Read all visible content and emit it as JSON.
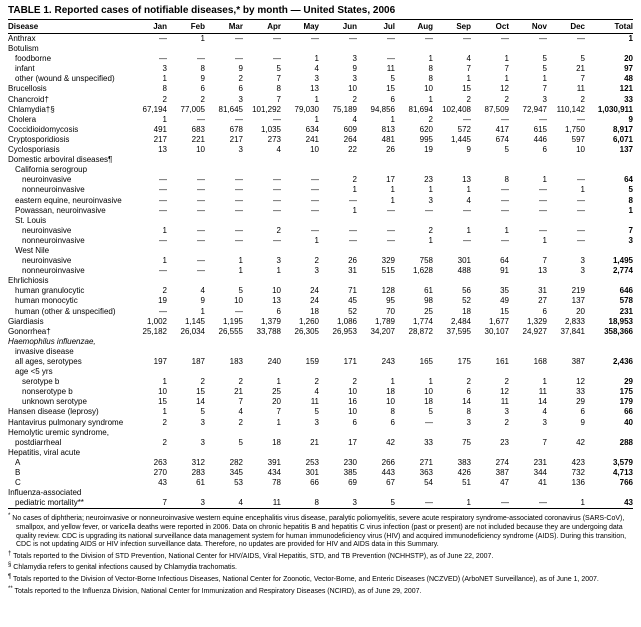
{
  "title": "TABLE 1.  Reported cases of notifiable diseases,* by month — United States, 2006",
  "table": {
    "columns": [
      "Disease",
      "Jan",
      "Feb",
      "Mar",
      "Apr",
      "May",
      "Jun",
      "Jul",
      "Aug",
      "Sep",
      "Oct",
      "Nov",
      "Dec",
      "Total"
    ],
    "empty_marker": "—",
    "rows": [
      {
        "label": "Anthrax",
        "indent": 0,
        "values": [
          "—",
          "1",
          "—",
          "—",
          "—",
          "—",
          "—",
          "—",
          "—",
          "—",
          "—",
          "—",
          "1"
        ]
      },
      {
        "label": "Botulism",
        "indent": 0,
        "values": []
      },
      {
        "label": "foodborne",
        "indent": 1,
        "values": [
          "—",
          "—",
          "—",
          "—",
          "1",
          "3",
          "—",
          "1",
          "4",
          "1",
          "5",
          "5",
          "20"
        ]
      },
      {
        "label": "infant",
        "indent": 1,
        "values": [
          "3",
          "8",
          "9",
          "5",
          "4",
          "9",
          "11",
          "8",
          "7",
          "7",
          "5",
          "21",
          "97"
        ]
      },
      {
        "label": "other (wound & unspecified)",
        "indent": 1,
        "values": [
          "1",
          "9",
          "2",
          "7",
          "3",
          "3",
          "5",
          "8",
          "1",
          "1",
          "1",
          "7",
          "48"
        ]
      },
      {
        "label": "Brucellosis",
        "indent": 0,
        "values": [
          "8",
          "6",
          "6",
          "8",
          "13",
          "10",
          "15",
          "10",
          "15",
          "12",
          "7",
          "11",
          "121"
        ]
      },
      {
        "label": "Chancroid†",
        "indent": 0,
        "values": [
          "2",
          "2",
          "3",
          "7",
          "1",
          "2",
          "6",
          "1",
          "2",
          "2",
          "3",
          "2",
          "33"
        ]
      },
      {
        "label": "Chlamydia†§",
        "indent": 0,
        "values": [
          "67,194",
          "77,005",
          "81,645",
          "101,292",
          "79,030",
          "75,189",
          "94,856",
          "81,694",
          "102,408",
          "87,509",
          "72,947",
          "110,142",
          "1,030,911"
        ]
      },
      {
        "label": "Cholera",
        "indent": 0,
        "values": [
          "1",
          "—",
          "—",
          "—",
          "1",
          "4",
          "1",
          "2",
          "—",
          "—",
          "—",
          "—",
          "9"
        ]
      },
      {
        "label": "Coccidioidomycosis",
        "indent": 0,
        "values": [
          "491",
          "683",
          "678",
          "1,035",
          "634",
          "609",
          "813",
          "620",
          "572",
          "417",
          "615",
          "1,750",
          "8,917"
        ]
      },
      {
        "label": "Cryptosporidiosis",
        "indent": 0,
        "values": [
          "217",
          "221",
          "217",
          "273",
          "241",
          "264",
          "481",
          "995",
          "1,445",
          "674",
          "446",
          "597",
          "6,071"
        ]
      },
      {
        "label": "Cyclosporiasis",
        "indent": 0,
        "values": [
          "13",
          "10",
          "3",
          "4",
          "10",
          "22",
          "26",
          "19",
          "9",
          "5",
          "6",
          "10",
          "137"
        ]
      },
      {
        "label": "Domestic arboviral diseases¶",
        "indent": 0,
        "values": []
      },
      {
        "label": "California serogroup",
        "indent": 1,
        "values": []
      },
      {
        "label": "neuroinvasive",
        "indent": 2,
        "values": [
          "—",
          "—",
          "—",
          "—",
          "—",
          "2",
          "17",
          "23",
          "13",
          "8",
          "1",
          "—",
          "64"
        ]
      },
      {
        "label": "nonneuroinvasive",
        "indent": 2,
        "values": [
          "—",
          "—",
          "—",
          "—",
          "—",
          "1",
          "1",
          "1",
          "1",
          "—",
          "—",
          "1",
          "5"
        ]
      },
      {
        "label": "eastern equine, neuroinvasive",
        "indent": 1,
        "values": [
          "—",
          "—",
          "—",
          "—",
          "—",
          "—",
          "1",
          "3",
          "4",
          "—",
          "—",
          "—",
          "8"
        ]
      },
      {
        "label": "Powassan, neuroinvasive",
        "indent": 1,
        "values": [
          "—",
          "—",
          "—",
          "—",
          "—",
          "1",
          "—",
          "—",
          "—",
          "—",
          "—",
          "—",
          "1"
        ]
      },
      {
        "label": "St. Louis",
        "indent": 1,
        "values": []
      },
      {
        "label": "neuroinvasive",
        "indent": 2,
        "values": [
          "1",
          "—",
          "—",
          "2",
          "—",
          "—",
          "—",
          "2",
          "1",
          "1",
          "—",
          "—",
          "7"
        ]
      },
      {
        "label": "nonneuroinvasive",
        "indent": 2,
        "values": [
          "—",
          "—",
          "—",
          "—",
          "1",
          "—",
          "—",
          "1",
          "—",
          "—",
          "1",
          "—",
          "3"
        ]
      },
      {
        "label": "West Nile",
        "indent": 1,
        "values": []
      },
      {
        "label": "neuroinvasive",
        "indent": 2,
        "values": [
          "1",
          "—",
          "1",
          "3",
          "2",
          "26",
          "329",
          "758",
          "301",
          "64",
          "7",
          "3",
          "1,495"
        ]
      },
      {
        "label": "nonneuroinvasive",
        "indent": 2,
        "values": [
          "—",
          "—",
          "1",
          "1",
          "3",
          "31",
          "515",
          "1,628",
          "488",
          "91",
          "13",
          "3",
          "2,774"
        ]
      },
      {
        "label": "Ehrlichiosis",
        "indent": 0,
        "values": []
      },
      {
        "label": "human granulocytic",
        "indent": 1,
        "values": [
          "2",
          "4",
          "5",
          "10",
          "24",
          "71",
          "128",
          "61",
          "56",
          "35",
          "31",
          "219",
          "646"
        ]
      },
      {
        "label": "human monocytic",
        "indent": 1,
        "values": [
          "19",
          "9",
          "10",
          "13",
          "24",
          "45",
          "95",
          "98",
          "52",
          "49",
          "27",
          "137",
          "578"
        ]
      },
      {
        "label": "human (other & unspecified)",
        "indent": 1,
        "values": [
          "—",
          "1",
          "—",
          "6",
          "18",
          "52",
          "70",
          "25",
          "18",
          "15",
          "6",
          "20",
          "231"
        ]
      },
      {
        "label": "Giardiasis",
        "indent": 0,
        "values": [
          "1,002",
          "1,145",
          "1,195",
          "1,379",
          "1,260",
          "1,086",
          "1,789",
          "1,774",
          "2,484",
          "1,677",
          "1,329",
          "2,833",
          "18,953"
        ]
      },
      {
        "label": "Gonorrhea†",
        "indent": 0,
        "values": [
          "25,182",
          "26,034",
          "26,555",
          "33,788",
          "26,305",
          "26,953",
          "34,207",
          "28,872",
          "37,595",
          "30,107",
          "24,927",
          "37,841",
          "358,366"
        ]
      },
      {
        "label": "Haemophilus influenzae,",
        "indent": 0,
        "italic": true,
        "values": []
      },
      {
        "label": "invasive disease",
        "indent": 1,
        "values": []
      },
      {
        "label": "all ages, serotypes",
        "indent": 1,
        "values": [
          "197",
          "187",
          "183",
          "240",
          "159",
          "171",
          "243",
          "165",
          "175",
          "161",
          "168",
          "387",
          "2,436"
        ]
      },
      {
        "label": "age <5 yrs",
        "indent": 1,
        "values": []
      },
      {
        "label": "serotype b",
        "indent": 2,
        "values": [
          "1",
          "2",
          "2",
          "1",
          "2",
          "2",
          "1",
          "1",
          "2",
          "2",
          "1",
          "12",
          "29"
        ]
      },
      {
        "label": "nonserotype b",
        "indent": 2,
        "values": [
          "10",
          "15",
          "21",
          "25",
          "4",
          "10",
          "18",
          "10",
          "6",
          "12",
          "11",
          "33",
          "175"
        ]
      },
      {
        "label": "unknown serotype",
        "indent": 2,
        "values": [
          "15",
          "14",
          "7",
          "20",
          "11",
          "16",
          "10",
          "18",
          "14",
          "11",
          "14",
          "29",
          "179"
        ]
      },
      {
        "label": "Hansen disease (leprosy)",
        "indent": 0,
        "values": [
          "1",
          "5",
          "4",
          "7",
          "5",
          "10",
          "8",
          "5",
          "8",
          "3",
          "4",
          "6",
          "66"
        ]
      },
      {
        "label": "Hantavirus pulmonary syndrome",
        "indent": 0,
        "values": [
          "2",
          "3",
          "2",
          "1",
          "3",
          "6",
          "6",
          "—",
          "3",
          "2",
          "3",
          "9",
          "40"
        ]
      },
      {
        "label": "Hemolytic uremic syndrome,",
        "indent": 0,
        "values": []
      },
      {
        "label": "postdiarrheal",
        "indent": 1,
        "values": [
          "2",
          "3",
          "5",
          "18",
          "21",
          "17",
          "42",
          "33",
          "75",
          "23",
          "7",
          "42",
          "288"
        ]
      },
      {
        "label": "Hepatitis, viral acute",
        "indent": 0,
        "values": []
      },
      {
        "label": "A",
        "indent": 1,
        "values": [
          "263",
          "312",
          "282",
          "391",
          "253",
          "230",
          "266",
          "271",
          "383",
          "274",
          "231",
          "423",
          "3,579"
        ]
      },
      {
        "label": "B",
        "indent": 1,
        "values": [
          "270",
          "283",
          "345",
          "434",
          "301",
          "385",
          "443",
          "363",
          "426",
          "387",
          "344",
          "732",
          "4,713"
        ]
      },
      {
        "label": "C",
        "indent": 1,
        "values": [
          "43",
          "61",
          "53",
          "78",
          "66",
          "69",
          "67",
          "54",
          "51",
          "47",
          "41",
          "136",
          "766"
        ]
      },
      {
        "label": "Influenza-associated",
        "indent": 0,
        "values": []
      },
      {
        "label": "pediatric mortality**",
        "indent": 1,
        "values": [
          "7",
          "3",
          "4",
          "11",
          "8",
          "3",
          "5",
          "—",
          "1",
          "—",
          "—",
          "1",
          "43"
        ]
      }
    ]
  },
  "footnotes": [
    {
      "marker": "*",
      "text": "No cases of diphtheria; neuroinvasive or nonneuroinvasive western equine encephalitis virus disease, paralytic poliomyelitis, severe acute respiratory syndrome-associated coronavirus (SARS-CoV), smallpox, and yellow fever, or varicella deaths were reported in 2006. Data on chronic hepatitis B and hepatitis C virus infection (past or present) are not included because they are undergoing data quality review. CDC is upgrading its national surveillance data management system for human immunodeficiency virus (HIV) and acquired immunodeficiency syndrome (AIDS). During this transition, CDC is not updating AIDS or HIV infection surveillance data. Therefore, no updates are provided for HIV and AIDS data in this Summary."
    },
    {
      "marker": "†",
      "text": "Totals reported to the Division of STD Prevention, National Center for HIV/AIDS, Viral Hepatitis, STD, and TB Prevention (NCHHSTP), as of June 22, 2007."
    },
    {
      "marker": "§",
      "text": "Chlamydia refers to genital infections caused by Chlamydia trachomatis."
    },
    {
      "marker": "¶",
      "text": "Totals reported to the Division of Vector-Borne Infectious Diseases, National Center for Zoonotic, Vector-Borne, and Enteric Diseases (NCZVED) (ArboNET Surveillance), as of June 1, 2007."
    },
    {
      "marker": "**",
      "text": "Totals reported to the Influenza Division, National Center for Immunization and Respiratory Diseases (NCIRD), as of June 29, 2007."
    }
  ]
}
